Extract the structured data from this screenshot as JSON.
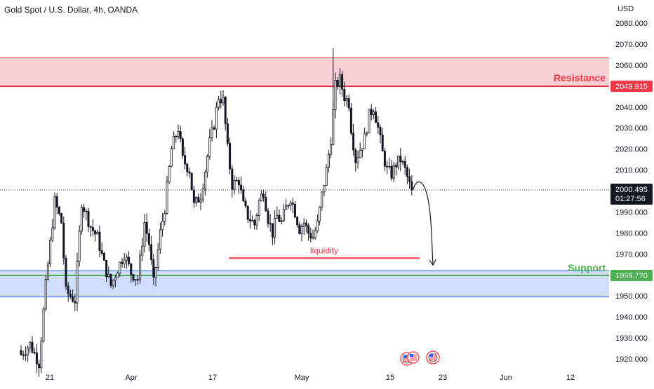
{
  "header": {
    "title": "Gold Spot / U.S. Dollar, 4h, OANDA"
  },
  "price_axis": {
    "currency": "USD",
    "ticks": [
      "2080.000",
      "2070.000",
      "2060.000",
      "2050.000",
      "2040.000",
      "2030.000",
      "2020.000",
      "2010.000",
      "2000.000",
      "1990.000",
      "1980.000",
      "1970.000",
      "1960.000",
      "1950.000",
      "1940.000",
      "1930.000",
      "1920.000"
    ]
  },
  "time_axis": {
    "ticks": [
      "21",
      "Apr",
      "17",
      "May",
      "15",
      "23",
      "Jun",
      "12"
    ]
  },
  "annotations": {
    "resistance_label": "Resistance",
    "resistance_price": "2049.915",
    "support_label": "Support",
    "support_price": "1959.770",
    "liquidity_label": "liquidity",
    "last_price": "2000.495",
    "countdown": "01:27:56"
  },
  "colors": {
    "up": "#131722",
    "down": "#131722",
    "resistance_line": "#f23645",
    "resistance_zone": "#f9cfd3",
    "support_line": "#4caf50",
    "support_zone": "#d1ddfc",
    "support_zone_border": "#2962ff",
    "liquidity_line": "#f23645",
    "last_price_bg": "#131722",
    "text": "#131722"
  },
  "chart_data": {
    "type": "candlestick",
    "symbol": "XAUUSD",
    "timeframe": "4h",
    "ylim": [
      1916,
      2086
    ],
    "support_zone": [
      1949.5,
      1962
    ],
    "resistance_zone": [
      2049.915,
      2063.5
    ],
    "resistance_level": 2049.915,
    "support_level": 1959.77,
    "liquidity_level": 1968,
    "last_price": 2000.495,
    "projection": [
      [
        2000.495,
        2006
      ],
      [
        1999,
        1964
      ]
    ],
    "anchors": [
      [
        0,
        1922
      ],
      [
        4,
        1927
      ],
      [
        8,
        1918
      ],
      [
        11,
        1955
      ],
      [
        15,
        1995
      ],
      [
        18,
        1985
      ],
      [
        20,
        1952
      ],
      [
        24,
        1948
      ],
      [
        27,
        1995
      ],
      [
        31,
        1983
      ],
      [
        34,
        1978
      ],
      [
        37,
        1965
      ],
      [
        40,
        1955
      ],
      [
        43,
        1963
      ],
      [
        46,
        1970
      ],
      [
        49,
        1961
      ],
      [
        52,
        1958
      ],
      [
        55,
        1985
      ],
      [
        57,
        1975
      ],
      [
        59,
        1956
      ],
      [
        62,
        1980
      ],
      [
        64,
        1992
      ],
      [
        67,
        2020
      ],
      [
        70,
        2030
      ],
      [
        72,
        2015
      ],
      [
        75,
        2010
      ],
      [
        77,
        1993
      ],
      [
        80,
        1998
      ],
      [
        82,
        2010
      ],
      [
        84,
        2023
      ],
      [
        86,
        2032
      ],
      [
        88,
        2045
      ],
      [
        90,
        2043
      ],
      [
        92,
        2020
      ],
      [
        94,
        2003
      ],
      [
        97,
        2005
      ],
      [
        99,
        1993
      ],
      [
        101,
        1988
      ],
      [
        104,
        1984
      ],
      [
        106,
        1995
      ],
      [
        108,
        2000
      ],
      [
        110,
        1987
      ],
      [
        112,
        1980
      ],
      [
        114,
        1988
      ],
      [
        116,
        1985
      ],
      [
        118,
        1992
      ],
      [
        120,
        1997
      ],
      [
        122,
        1990
      ],
      [
        124,
        1982
      ],
      [
        126,
        1985
      ],
      [
        128,
        1980
      ],
      [
        130,
        1978
      ],
      [
        132,
        1984
      ],
      [
        134,
        1998
      ],
      [
        136,
        2010
      ],
      [
        138,
        2025
      ],
      [
        140,
        2050
      ],
      [
        142,
        2053
      ],
      [
        144,
        2045
      ],
      [
        146,
        2042
      ],
      [
        147,
        2030
      ],
      [
        149,
        2015
      ],
      [
        151,
        2020
      ],
      [
        153,
        2025
      ],
      [
        155,
        2036
      ],
      [
        157,
        2040
      ],
      [
        159,
        2030
      ],
      [
        161,
        2018
      ],
      [
        163,
        2010
      ],
      [
        165,
        2008
      ],
      [
        167,
        2013
      ],
      [
        169,
        2015
      ],
      [
        171,
        2010
      ],
      [
        173,
        2003
      ],
      [
        174,
        2000.5
      ]
    ]
  }
}
